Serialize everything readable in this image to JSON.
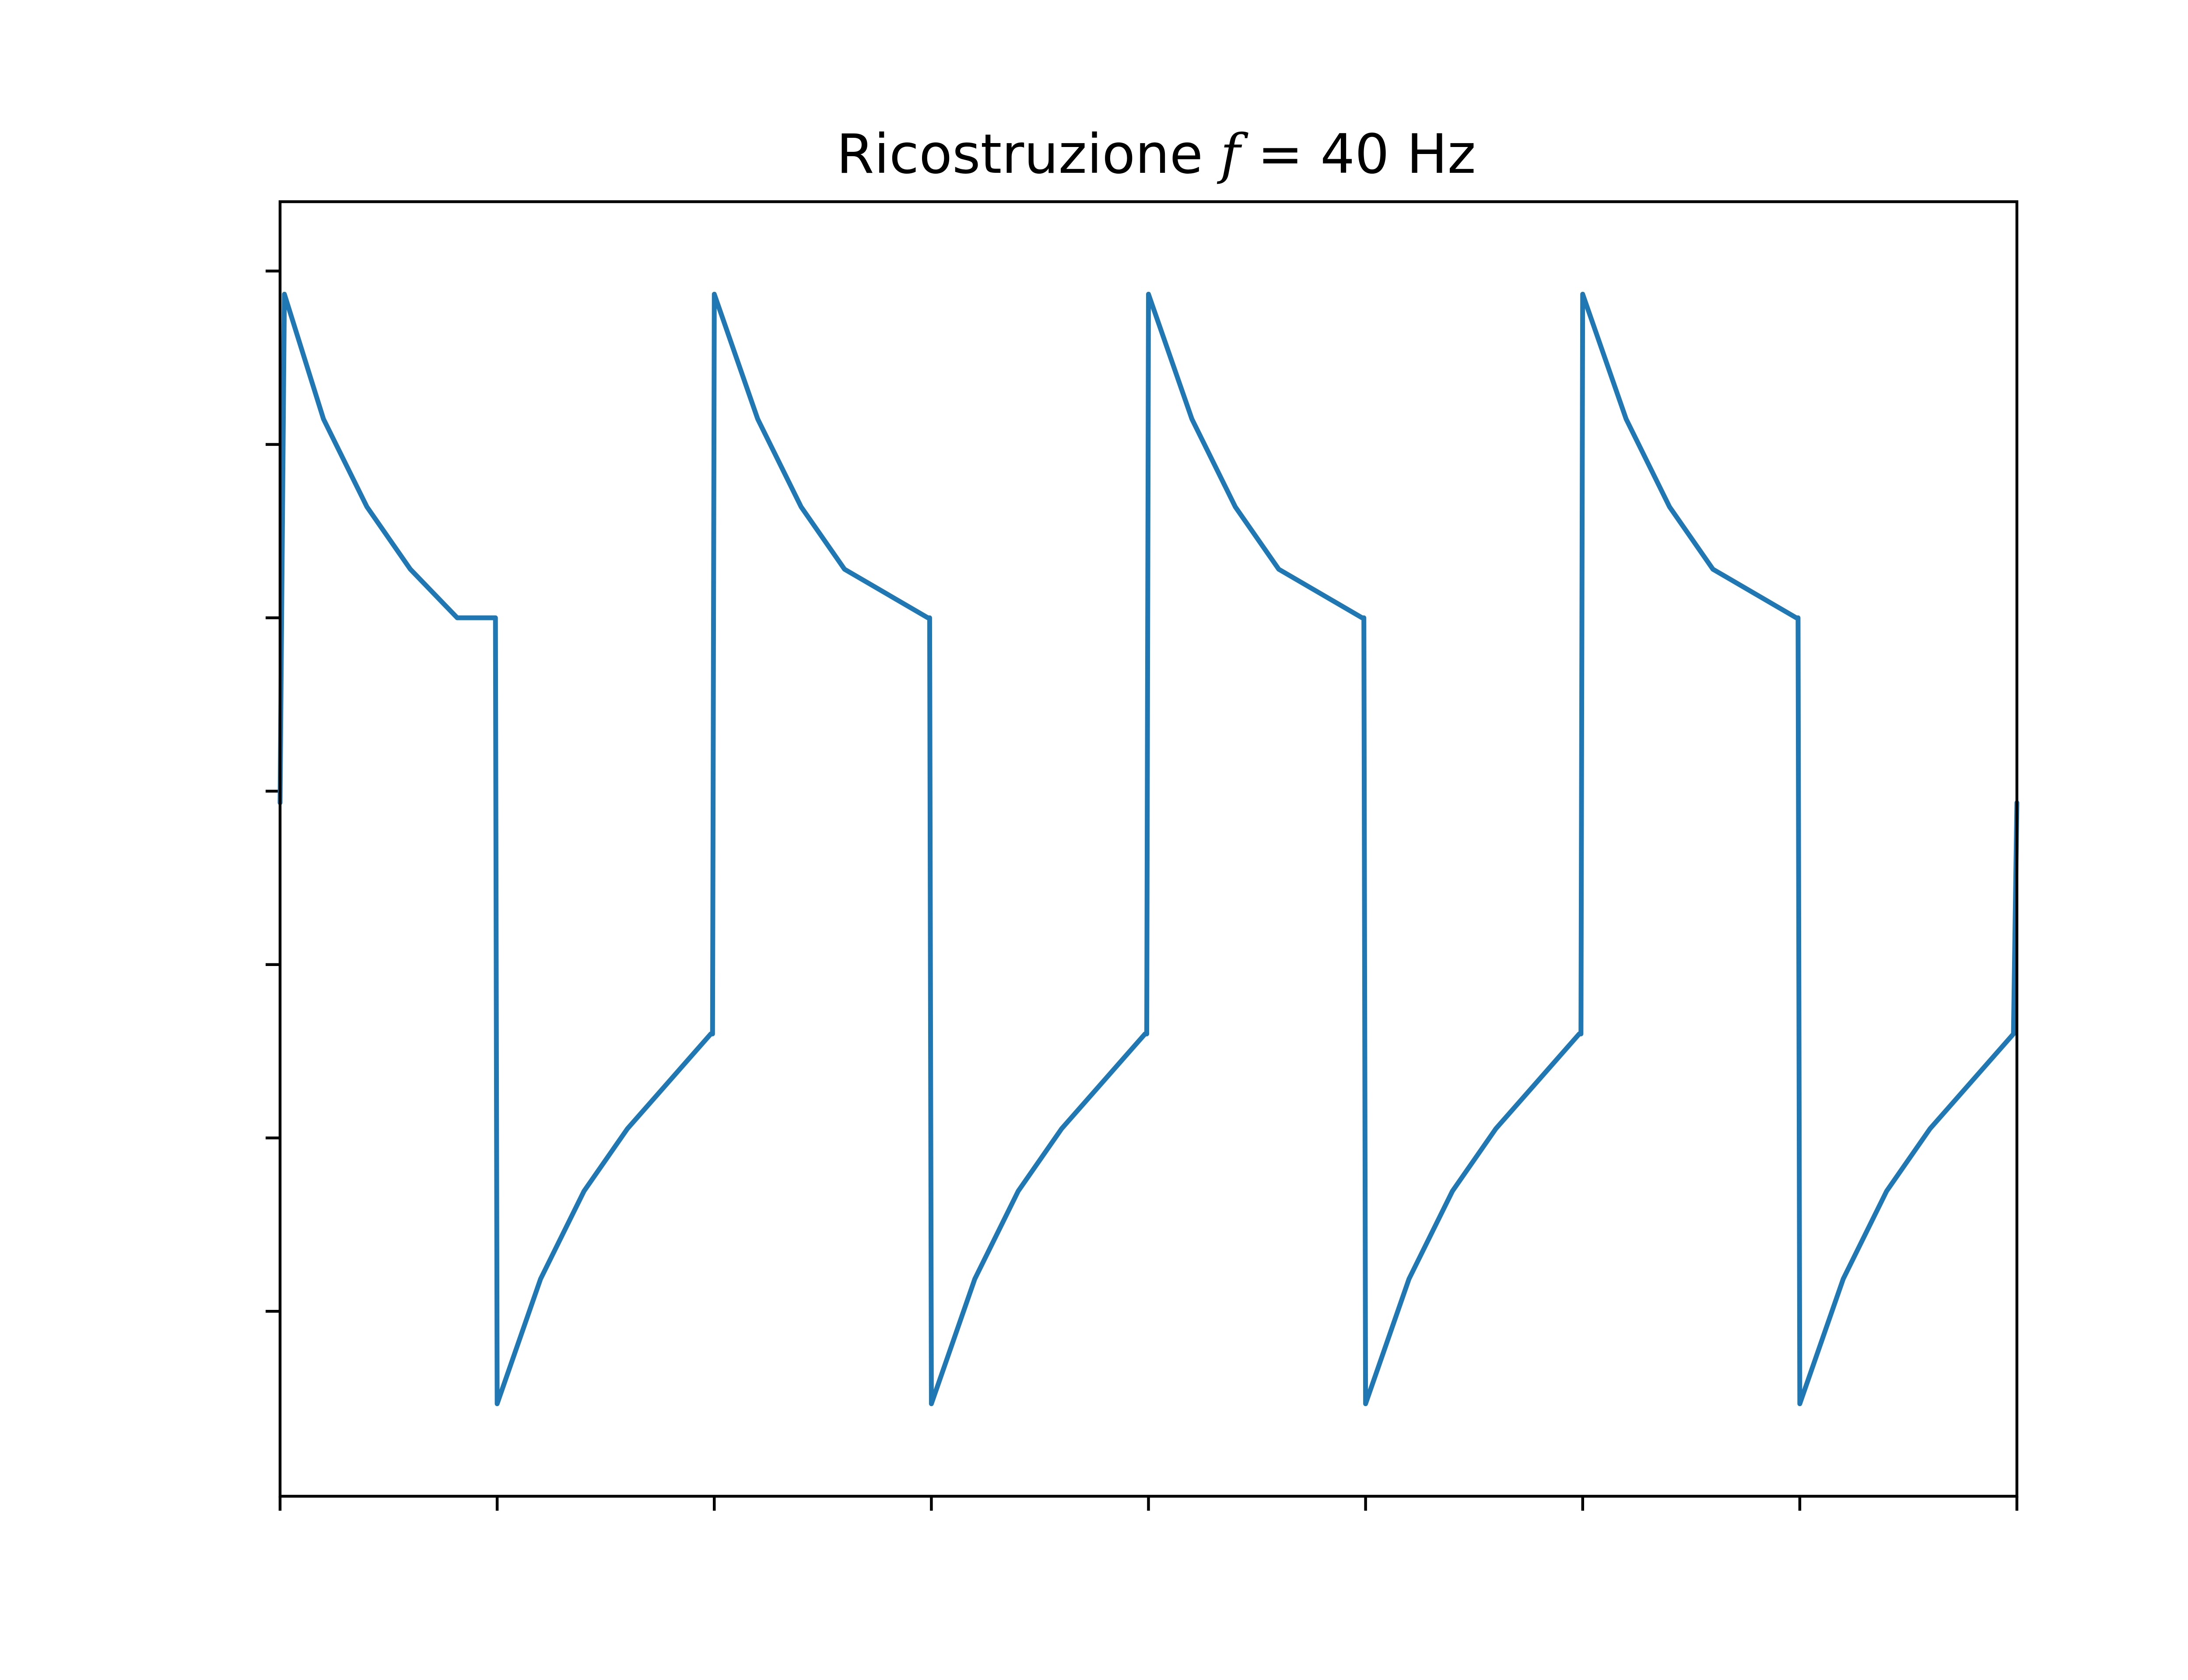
{
  "chart_data": {
    "type": "line",
    "title_prefix": "Ricostruzione ",
    "title_symbol": "f",
    "title_suffix": " = 40 Hz",
    "xlabel": "",
    "ylabel": "",
    "xlim": [
      0,
      0.1
    ],
    "ylim": [
      -1.4,
      1.4
    ],
    "x_ticks": [
      0,
      0.0125,
      0.025,
      0.0375,
      0.05,
      0.0625,
      0.075,
      0.0875,
      0.1
    ],
    "y_ticks": [
      -1.0,
      -0.625,
      -0.25,
      0.125,
      0.5,
      0.875,
      1.25
    ],
    "x_tick_labels_visible": false,
    "y_tick_labels_visible": false,
    "grid": false,
    "legend": "none",
    "series": [
      {
        "color": "#1f77b4",
        "waveform": "exponential charge/discharge square-wave response",
        "points": [
          [
            0.0,
            0.1
          ],
          [
            0.00025,
            1.2
          ],
          [
            0.0025,
            0.93
          ],
          [
            0.005,
            0.74
          ],
          [
            0.0075,
            0.605
          ],
          [
            0.0102,
            0.5
          ],
          [
            0.0124,
            0.5
          ],
          [
            0.0125,
            -1.2
          ],
          [
            0.015,
            -0.93
          ],
          [
            0.0175,
            -0.74
          ],
          [
            0.02,
            -0.605
          ],
          [
            0.0248,
            -0.4
          ],
          [
            0.0249,
            -0.4
          ],
          [
            0.025,
            1.2
          ],
          [
            0.0275,
            0.93
          ],
          [
            0.03,
            0.74
          ],
          [
            0.0325,
            0.605
          ],
          [
            0.0373,
            0.5
          ],
          [
            0.0374,
            0.5
          ],
          [
            0.0375,
            -1.2
          ],
          [
            0.04,
            -0.93
          ],
          [
            0.0425,
            -0.74
          ],
          [
            0.045,
            -0.605
          ],
          [
            0.0498,
            -0.4
          ],
          [
            0.0499,
            -0.4
          ],
          [
            0.05,
            1.2
          ],
          [
            0.0525,
            0.93
          ],
          [
            0.055,
            0.74
          ],
          [
            0.0575,
            0.605
          ],
          [
            0.0623,
            0.5
          ],
          [
            0.0624,
            0.5
          ],
          [
            0.0625,
            -1.2
          ],
          [
            0.065,
            -0.93
          ],
          [
            0.0675,
            -0.74
          ],
          [
            0.07,
            -0.605
          ],
          [
            0.0748,
            -0.4
          ],
          [
            0.0749,
            -0.4
          ],
          [
            0.075,
            1.2
          ],
          [
            0.0775,
            0.93
          ],
          [
            0.08,
            0.74
          ],
          [
            0.0825,
            0.605
          ],
          [
            0.0873,
            0.5
          ],
          [
            0.0874,
            0.5
          ],
          [
            0.0875,
            -1.2
          ],
          [
            0.09,
            -0.93
          ],
          [
            0.0925,
            -0.74
          ],
          [
            0.095,
            -0.605
          ],
          [
            0.0998,
            -0.4
          ],
          [
            0.1,
            0.1
          ]
        ]
      }
    ]
  }
}
